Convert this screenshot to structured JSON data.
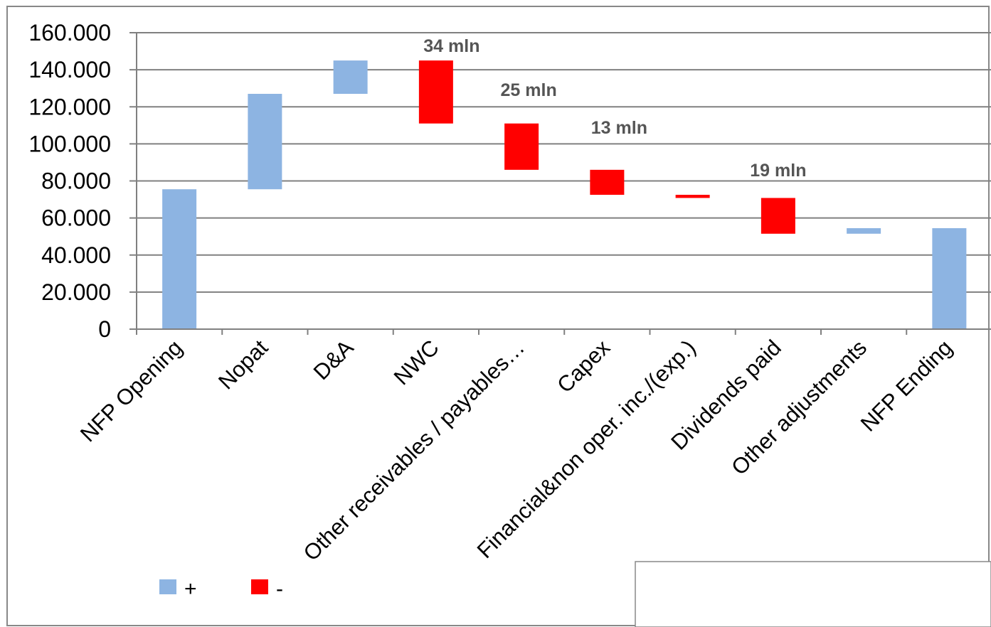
{
  "chart_data": {
    "type": "bar",
    "subtype": "waterfall",
    "categories": [
      "NFP Opening",
      "Nopat",
      "D&A",
      "NWC",
      "Other receivables / payables…",
      "Capex",
      "Financial&non oper. inc./(exp.)",
      "Dividends paid",
      "Other adjustments",
      "NFP Ending"
    ],
    "bars": [
      {
        "low": 0,
        "high": 75500,
        "sign": "+"
      },
      {
        "low": 75500,
        "high": 127000,
        "sign": "+"
      },
      {
        "low": 127000,
        "high": 145000,
        "sign": "+"
      },
      {
        "low": 111000,
        "high": 145000,
        "sign": "-"
      },
      {
        "low": 86000,
        "high": 111000,
        "sign": "-"
      },
      {
        "low": 72500,
        "high": 86000,
        "sign": "-"
      },
      {
        "low": 70800,
        "high": 72500,
        "sign": "-"
      },
      {
        "low": 51500,
        "high": 70800,
        "sign": "-"
      },
      {
        "low": 51500,
        "high": 54500,
        "sign": "+"
      },
      {
        "low": 0,
        "high": 54500,
        "sign": "+"
      }
    ],
    "data_labels": [
      {
        "category": "NWC",
        "text": "34 mln"
      },
      {
        "category": "Other receivables / payables…",
        "text": "25 mln"
      },
      {
        "category": "Capex",
        "text": "13 mln"
      },
      {
        "category": "Dividends paid",
        "text": "19 mln"
      }
    ],
    "y_ticks": [
      "0",
      "20.000",
      "40.000",
      "60.000",
      "80.000",
      "100.000",
      "120.000",
      "140.000",
      "160.000"
    ],
    "ylim": [
      0,
      160000
    ],
    "grid": true,
    "legend": {
      "placement": "bottom-left",
      "items": [
        {
          "label": "+",
          "color": "#8DB4E2"
        },
        {
          "label": "-",
          "color": "#FF0000"
        }
      ]
    },
    "colors": {
      "positive": "#8DB4E2",
      "negative": "#FF0000",
      "gridline": "#808080",
      "axis": "#808080",
      "border": "#808080"
    },
    "title": "",
    "xlabel": "",
    "ylabel": ""
  }
}
